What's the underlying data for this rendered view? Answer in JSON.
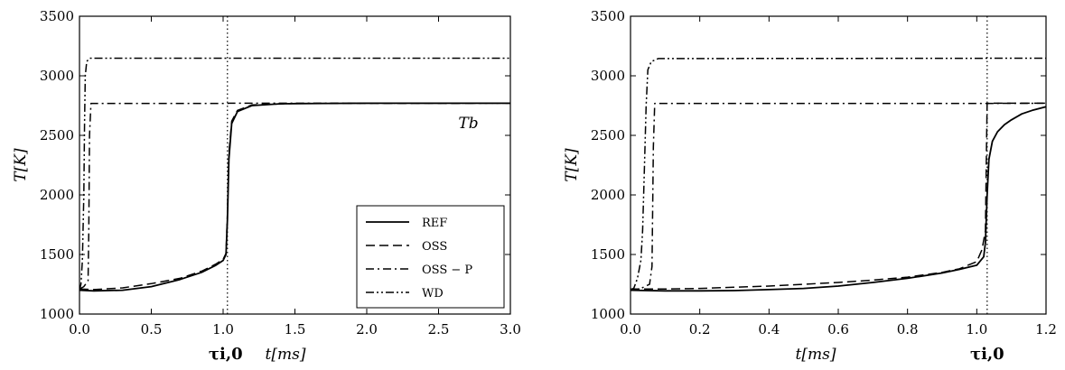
{
  "chart_data": [
    {
      "type": "line",
      "xlabel": "t[ms]",
      "ylabel": "T[K]",
      "xlim": [
        0,
        3.0
      ],
      "ylim": [
        1000,
        3500
      ],
      "xticks": [
        "0.0",
        "0.5",
        "1.0",
        "1.5",
        "2.0",
        "2.5",
        "3.0"
      ],
      "yticks": [
        "1000",
        "1500",
        "2000",
        "2500",
        "3000",
        "3500"
      ],
      "vline": {
        "x": 1.03,
        "label": "τi,0"
      },
      "annotation": {
        "text": "Tb",
        "x": 2.6,
        "y": 2650
      },
      "legend": {
        "position": "bottom-right",
        "entries": [
          "REF",
          "OSS",
          "OSS − P",
          "WD"
        ]
      },
      "series": [
        {
          "name": "REF",
          "style": "solid",
          "x": [
            0,
            0.1,
            0.3,
            0.5,
            0.7,
            0.85,
            0.95,
            1.0,
            1.02,
            1.03,
            1.04,
            1.06,
            1.1,
            1.2,
            1.4,
            1.7,
            2.0,
            3.0
          ],
          "y": [
            1200,
            1195,
            1200,
            1230,
            1290,
            1350,
            1410,
            1450,
            1500,
            1800,
            2300,
            2600,
            2700,
            2750,
            2765,
            2768,
            2770,
            2770
          ]
        },
        {
          "name": "OSS",
          "style": "dashed",
          "x": [
            0,
            0.1,
            0.3,
            0.5,
            0.7,
            0.85,
            0.95,
            1.0,
            1.02,
            1.03,
            1.04,
            1.06,
            1.1,
            1.2,
            1.5,
            3.0
          ],
          "y": [
            1210,
            1205,
            1220,
            1255,
            1300,
            1360,
            1420,
            1460,
            1510,
            1850,
            2350,
            2620,
            2710,
            2755,
            2768,
            2770
          ]
        },
        {
          "name": "OSS − P",
          "style": "dashdot",
          "x": [
            0,
            0.03,
            0.06,
            0.065,
            0.07,
            0.08,
            1.0,
            1.02,
            1.03,
            1.04,
            3.0
          ],
          "y": [
            1210,
            1230,
            1280,
            1700,
            2500,
            2768,
            2768,
            2768,
            2768,
            2770,
            2770
          ]
        },
        {
          "name": "WD",
          "style": "dashdotdot",
          "x": [
            0,
            0.01,
            0.02,
            0.03,
            0.035,
            0.04,
            0.05,
            0.07,
            3.0
          ],
          "y": [
            1200,
            1250,
            1450,
            2000,
            2600,
            3000,
            3120,
            3148,
            3148
          ]
        }
      ]
    },
    {
      "type": "line",
      "xlabel": "t[ms]",
      "ylabel": "T[K]",
      "xlim": [
        0,
        1.2
      ],
      "ylim": [
        1000,
        3500
      ],
      "xticks": [
        "0.0",
        "0.2",
        "0.4",
        "0.6",
        "0.8",
        "1.0",
        "1.2"
      ],
      "yticks": [
        "1000",
        "1500",
        "2000",
        "2500",
        "3000",
        "3500"
      ],
      "vline": {
        "x": 1.03,
        "label": "τi,0"
      },
      "series": [
        {
          "name": "REF",
          "style": "solid",
          "x": [
            0,
            0.1,
            0.2,
            0.3,
            0.4,
            0.5,
            0.6,
            0.7,
            0.8,
            0.9,
            0.95,
            1.0,
            1.02,
            1.025,
            1.03,
            1.035,
            1.045,
            1.06,
            1.08,
            1.1,
            1.13,
            1.16,
            1.2
          ],
          "y": [
            1200,
            1195,
            1195,
            1197,
            1205,
            1215,
            1235,
            1265,
            1300,
            1345,
            1375,
            1410,
            1480,
            1600,
            2000,
            2300,
            2450,
            2530,
            2590,
            2630,
            2680,
            2710,
            2740
          ]
        },
        {
          "name": "OSS",
          "style": "dashed",
          "x": [
            0,
            0.1,
            0.2,
            0.3,
            0.4,
            0.5,
            0.6,
            0.7,
            0.8,
            0.9,
            0.95,
            1.0,
            1.015,
            1.025,
            1.028,
            1.03,
            1.04,
            1.2
          ],
          "y": [
            1210,
            1210,
            1215,
            1225,
            1235,
            1250,
            1265,
            1285,
            1310,
            1350,
            1380,
            1440,
            1540,
            1700,
            2400,
            2768,
            2770,
            2770
          ]
        },
        {
          "name": "OSS − P",
          "style": "dashdot",
          "x": [
            0,
            0.03,
            0.055,
            0.062,
            0.066,
            0.07,
            1.0,
            1.03,
            1.2
          ],
          "y": [
            1200,
            1215,
            1250,
            1400,
            2400,
            2768,
            2768,
            2768,
            2770
          ]
        },
        {
          "name": "WD",
          "style": "dashdotdot",
          "x": [
            0,
            0.01,
            0.02,
            0.03,
            0.035,
            0.04,
            0.045,
            0.05,
            0.06,
            0.08,
            1.2
          ],
          "y": [
            1200,
            1220,
            1300,
            1450,
            1700,
            2200,
            2750,
            3050,
            3120,
            3145,
            3148
          ]
        }
      ]
    }
  ]
}
